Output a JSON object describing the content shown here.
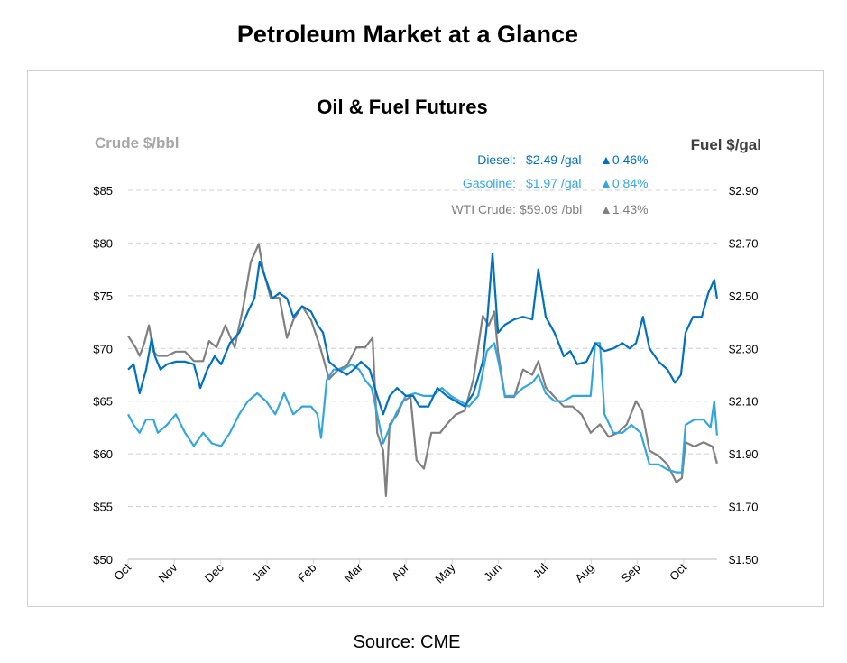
{
  "page_title": "Petroleum Market at a Glance",
  "source": "Source: CME",
  "colors": {
    "diesel": "#0070C0",
    "gasoline": "#33A6E0",
    "wti": "#808080"
  },
  "chart_data": {
    "type": "line",
    "title": "Oil & Fuel Futures",
    "ylabel_left": "Crude $/bbl",
    "ylabel_right": "Fuel $/gal",
    "ylim_left": [
      50,
      85
    ],
    "ylim_right": [
      1.5,
      2.9
    ],
    "yticks_left": [
      "$85",
      "$80",
      "$75",
      "$70",
      "$65",
      "$60",
      "$55",
      "$50"
    ],
    "yticks_right": [
      "$2.90",
      "$2.70",
      "$2.50",
      "$2.30",
      "$2.10",
      "$1.90",
      "$1.70",
      "$1.50"
    ],
    "xticks": [
      "Oct",
      "Nov",
      "Dec",
      "Jan",
      "Feb",
      "Mar",
      "Apr",
      "May",
      "Jun",
      "Jul",
      "Aug",
      "Sep",
      "Oct"
    ],
    "x_unit": "months since first Oct tick",
    "grid": true,
    "legend": [
      {
        "label": "Diesel:",
        "value": "$2.49 /gal",
        "change": "▲0.46%"
      },
      {
        "label": "Gasoline:",
        "value": "$1.97 /gal",
        "change": "▲0.84%"
      },
      {
        "label": "WTI Crude:",
        "value": "$59.09 /bbl",
        "change": "▲1.43%"
      }
    ],
    "series": [
      {
        "name": "WTI Crude",
        "axis": "left",
        "points": [
          [
            0,
            71.2
          ],
          [
            0.16,
            70.1
          ],
          [
            0.25,
            69.3
          ],
          [
            0.35,
            70.5
          ],
          [
            0.45,
            72.2
          ],
          [
            0.55,
            69.7
          ],
          [
            0.64,
            69.3
          ],
          [
            0.84,
            69.3
          ],
          [
            1.03,
            69.7
          ],
          [
            1.23,
            69.7
          ],
          [
            1.42,
            68.8
          ],
          [
            1.62,
            68.8
          ],
          [
            1.75,
            70.7
          ],
          [
            1.91,
            70.1
          ],
          [
            2.1,
            72.2
          ],
          [
            2.3,
            70.1
          ],
          [
            2.49,
            74.0
          ],
          [
            2.65,
            78.2
          ],
          [
            2.82,
            79.9
          ],
          [
            2.92,
            77.4
          ],
          [
            3.08,
            74.8
          ],
          [
            3.27,
            74.8
          ],
          [
            3.43,
            71.0
          ],
          [
            3.57,
            72.7
          ],
          [
            3.76,
            74.0
          ],
          [
            3.95,
            72.7
          ],
          [
            4.15,
            70.1
          ],
          [
            4.34,
            67.1
          ],
          [
            4.54,
            68.0
          ],
          [
            4.73,
            68.4
          ],
          [
            4.93,
            70.1
          ],
          [
            5.12,
            70.1
          ],
          [
            5.28,
            71.0
          ],
          [
            5.38,
            62.0
          ],
          [
            5.51,
            60.3
          ],
          [
            5.57,
            56.0
          ],
          [
            5.65,
            62.8
          ],
          [
            5.81,
            63.7
          ],
          [
            5.94,
            65.0
          ],
          [
            6.1,
            65.4
          ],
          [
            6.23,
            59.4
          ],
          [
            6.39,
            58.6
          ],
          [
            6.55,
            62.0
          ],
          [
            6.74,
            62.0
          ],
          [
            6.88,
            62.8
          ],
          [
            7.07,
            63.7
          ],
          [
            7.27,
            64.1
          ],
          [
            7.46,
            67.1
          ],
          [
            7.66,
            73.1
          ],
          [
            7.79,
            72.2
          ],
          [
            7.91,
            73.5
          ],
          [
            7.99,
            69.7
          ],
          [
            8.14,
            65.4
          ],
          [
            8.34,
            65.4
          ],
          [
            8.53,
            68.0
          ],
          [
            8.73,
            67.5
          ],
          [
            8.86,
            68.8
          ],
          [
            9.02,
            66.3
          ],
          [
            9.21,
            65.4
          ],
          [
            9.41,
            64.5
          ],
          [
            9.6,
            64.5
          ],
          [
            9.8,
            63.7
          ],
          [
            9.99,
            62.0
          ],
          [
            10.19,
            62.8
          ],
          [
            10.38,
            61.6
          ],
          [
            10.58,
            62.0
          ],
          [
            10.77,
            62.8
          ],
          [
            10.97,
            65.0
          ],
          [
            11.1,
            64.1
          ],
          [
            11.26,
            60.3
          ],
          [
            11.46,
            59.8
          ],
          [
            11.65,
            59.0
          ],
          [
            11.84,
            57.3
          ],
          [
            11.96,
            57.7
          ],
          [
            12.04,
            61.1
          ],
          [
            12.23,
            60.7
          ],
          [
            12.43,
            61.1
          ],
          [
            12.62,
            60.7
          ],
          [
            12.72,
            59.09
          ]
        ]
      },
      {
        "name": "Gasoline",
        "axis": "right",
        "points": [
          [
            0,
            2.05
          ],
          [
            0.12,
            2.01
          ],
          [
            0.25,
            1.98
          ],
          [
            0.39,
            2.03
          ],
          [
            0.55,
            2.03
          ],
          [
            0.64,
            1.98
          ],
          [
            0.84,
            2.01
          ],
          [
            1.03,
            2.05
          ],
          [
            1.23,
            1.98
          ],
          [
            1.42,
            1.93
          ],
          [
            1.62,
            1.98
          ],
          [
            1.81,
            1.94
          ],
          [
            2.01,
            1.93
          ],
          [
            2.2,
            1.98
          ],
          [
            2.4,
            2.05
          ],
          [
            2.59,
            2.1
          ],
          [
            2.79,
            2.13
          ],
          [
            2.98,
            2.1
          ],
          [
            3.18,
            2.05
          ],
          [
            3.37,
            2.13
          ],
          [
            3.57,
            2.05
          ],
          [
            3.76,
            2.08
          ],
          [
            3.95,
            2.08
          ],
          [
            4.09,
            2.05
          ],
          [
            4.17,
            1.96
          ],
          [
            4.29,
            2.18
          ],
          [
            4.44,
            2.22
          ],
          [
            4.64,
            2.22
          ],
          [
            4.83,
            2.24
          ],
          [
            4.99,
            2.22
          ],
          [
            5.12,
            2.18
          ],
          [
            5.26,
            2.15
          ],
          [
            5.38,
            2.05
          ],
          [
            5.51,
            1.94
          ],
          [
            5.65,
            2.0
          ],
          [
            5.81,
            2.06
          ],
          [
            6.0,
            2.12
          ],
          [
            6.2,
            2.13
          ],
          [
            6.39,
            2.12
          ],
          [
            6.58,
            2.12
          ],
          [
            6.78,
            2.15
          ],
          [
            6.97,
            2.12
          ],
          [
            7.17,
            2.1
          ],
          [
            7.36,
            2.08
          ],
          [
            7.56,
            2.12
          ],
          [
            7.75,
            2.29
          ],
          [
            7.91,
            2.32
          ],
          [
            8.01,
            2.24
          ],
          [
            8.14,
            2.12
          ],
          [
            8.34,
            2.12
          ],
          [
            8.53,
            2.15
          ],
          [
            8.73,
            2.17
          ],
          [
            8.86,
            2.2
          ],
          [
            9.02,
            2.13
          ],
          [
            9.21,
            2.1
          ],
          [
            9.41,
            2.1
          ],
          [
            9.6,
            2.12
          ],
          [
            9.8,
            2.12
          ],
          [
            9.99,
            2.12
          ],
          [
            10.09,
            2.32
          ],
          [
            10.19,
            2.32
          ],
          [
            10.29,
            2.05
          ],
          [
            10.48,
            1.98
          ],
          [
            10.68,
            1.98
          ],
          [
            10.87,
            2.01
          ],
          [
            11.07,
            1.98
          ],
          [
            11.26,
            1.86
          ],
          [
            11.46,
            1.86
          ],
          [
            11.65,
            1.84
          ],
          [
            11.84,
            1.83
          ],
          [
            11.96,
            1.83
          ],
          [
            12.04,
            2.01
          ],
          [
            12.23,
            2.03
          ],
          [
            12.43,
            2.03
          ],
          [
            12.58,
            2.0
          ],
          [
            12.66,
            2.1
          ],
          [
            12.72,
            1.97
          ]
        ]
      },
      {
        "name": "Diesel",
        "axis": "right",
        "points": [
          [
            0,
            2.22
          ],
          [
            0.12,
            2.24
          ],
          [
            0.25,
            2.13
          ],
          [
            0.39,
            2.22
          ],
          [
            0.51,
            2.34
          ],
          [
            0.58,
            2.27
          ],
          [
            0.7,
            2.22
          ],
          [
            0.84,
            2.24
          ],
          [
            1.03,
            2.25
          ],
          [
            1.23,
            2.25
          ],
          [
            1.42,
            2.24
          ],
          [
            1.56,
            2.15
          ],
          [
            1.71,
            2.22
          ],
          [
            1.87,
            2.27
          ],
          [
            2.01,
            2.24
          ],
          [
            2.2,
            2.32
          ],
          [
            2.4,
            2.36
          ],
          [
            2.59,
            2.44
          ],
          [
            2.73,
            2.49
          ],
          [
            2.84,
            2.63
          ],
          [
            2.98,
            2.56
          ],
          [
            3.12,
            2.49
          ],
          [
            3.27,
            2.51
          ],
          [
            3.43,
            2.49
          ],
          [
            3.57,
            2.42
          ],
          [
            3.76,
            2.46
          ],
          [
            3.95,
            2.44
          ],
          [
            4.09,
            2.39
          ],
          [
            4.21,
            2.36
          ],
          [
            4.34,
            2.25
          ],
          [
            4.54,
            2.22
          ],
          [
            4.73,
            2.2
          ],
          [
            4.87,
            2.22
          ],
          [
            5.03,
            2.25
          ],
          [
            5.22,
            2.22
          ],
          [
            5.38,
            2.12
          ],
          [
            5.51,
            2.05
          ],
          [
            5.65,
            2.12
          ],
          [
            5.81,
            2.15
          ],
          [
            6.0,
            2.12
          ],
          [
            6.16,
            2.12
          ],
          [
            6.29,
            2.08
          ],
          [
            6.49,
            2.08
          ],
          [
            6.68,
            2.15
          ],
          [
            6.88,
            2.12
          ],
          [
            7.07,
            2.1
          ],
          [
            7.27,
            2.08
          ],
          [
            7.46,
            2.13
          ],
          [
            7.66,
            2.25
          ],
          [
            7.75,
            2.39
          ],
          [
            7.87,
            2.66
          ],
          [
            7.99,
            2.36
          ],
          [
            8.14,
            2.39
          ],
          [
            8.34,
            2.41
          ],
          [
            8.53,
            2.42
          ],
          [
            8.73,
            2.41
          ],
          [
            8.86,
            2.6
          ],
          [
            9.02,
            2.42
          ],
          [
            9.21,
            2.36
          ],
          [
            9.41,
            2.27
          ],
          [
            9.55,
            2.29
          ],
          [
            9.7,
            2.24
          ],
          [
            9.9,
            2.25
          ],
          [
            10.09,
            2.32
          ],
          [
            10.29,
            2.29
          ],
          [
            10.48,
            2.3
          ],
          [
            10.68,
            2.32
          ],
          [
            10.83,
            2.3
          ],
          [
            10.97,
            2.32
          ],
          [
            11.12,
            2.42
          ],
          [
            11.26,
            2.3
          ],
          [
            11.46,
            2.25
          ],
          [
            11.65,
            2.22
          ],
          [
            11.81,
            2.17
          ],
          [
            11.94,
            2.2
          ],
          [
            12.04,
            2.36
          ],
          [
            12.2,
            2.42
          ],
          [
            12.39,
            2.42
          ],
          [
            12.53,
            2.51
          ],
          [
            12.66,
            2.56
          ],
          [
            12.72,
            2.49
          ]
        ]
      }
    ]
  }
}
